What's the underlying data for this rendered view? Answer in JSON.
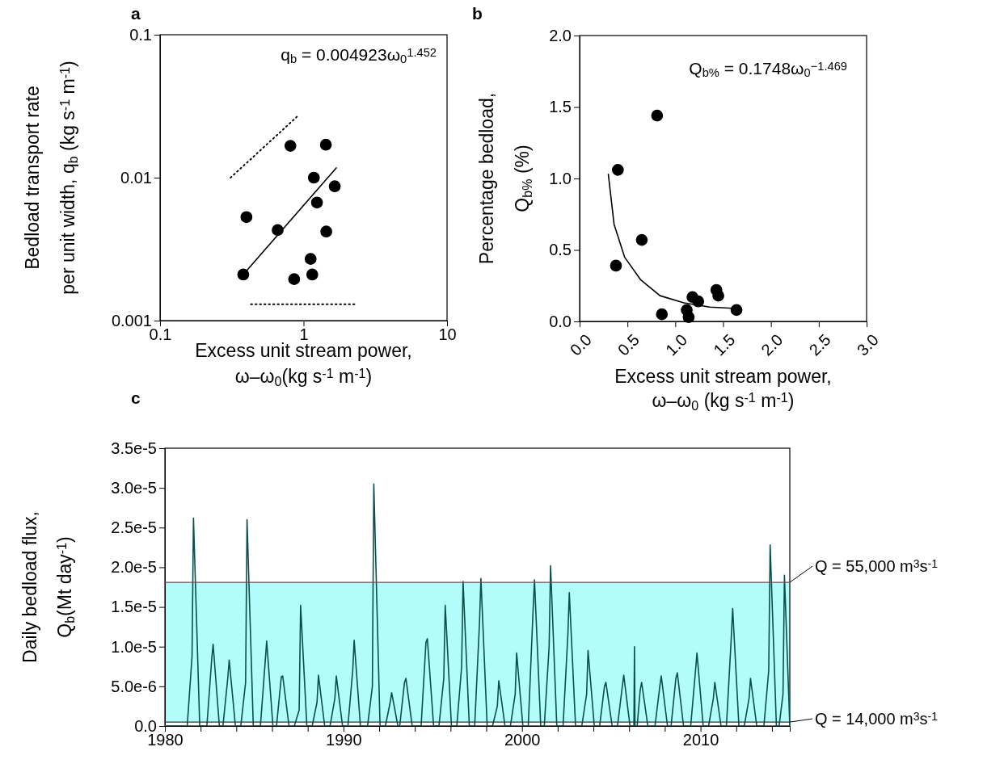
{
  "chart_data": [
    {
      "type": "scatter",
      "title": "a",
      "xlabel": "Excess unit stream power,\nω–ω$_{0}$(kg s$^{-1}$ m$^{-1}$)",
      "ylabel": "Bedload transport rate\nper unit width, q$_{b}$ (kg s$^{-1}$ m$^{-1}$)",
      "annotations": [
        "q$_{b}$ = 0.004923ω$_{0}$$^{1.452}$"
      ],
      "log": "xy",
      "xlim": [
        0.1,
        10
      ],
      "ylim": [
        0.001,
        0.1
      ],
      "xticks": [
        0.1,
        1,
        10
      ],
      "yticks": [
        0.001,
        0.01,
        0.1
      ],
      "series": [
        {
          "marker": "circle",
          "color": "#000000",
          "x": [
            0.38,
            0.4,
            0.66,
            0.81,
            0.86,
            1.12,
            1.15,
            1.18,
            1.24,
            1.43,
            1.44,
            1.65
          ],
          "values": [
            0.0021,
            0.0053,
            0.0043,
            0.0167,
            0.00195,
            0.0027,
            0.0021,
            0.01,
            0.0067,
            0.017,
            0.0042,
            0.0087
          ]
        },
        {
          "type": "line",
          "color": "#000000",
          "x": [
            0.38,
            1.69
          ],
          "values": [
            0.0021,
            0.0117
          ]
        },
        {
          "type": "line",
          "color": "#000000",
          "line_style": "dotted",
          "x": [
            0.31,
            0.93
          ],
          "values": [
            0.01,
            0.0275
          ]
        },
        {
          "type": "line",
          "color": "#000000",
          "line_style": "dotted",
          "x": [
            0.43,
            2.35
          ],
          "values": [
            0.0013,
            0.0013
          ]
        }
      ]
    },
    {
      "type": "scatter",
      "title": "b",
      "xlabel": "Excess unit stream power,\nω–ω$_{0}$ (kg s$^{-1}$ m$^{-1}$)",
      "ylabel": "Percentage bedload,\nQ$_{b%}$ (%)",
      "annotations": [
        "Q$_{b%}$ = 0.1748ω$_{0}$$^{−1.469}$"
      ],
      "xlim": [
        0,
        3
      ],
      "ylim": [
        0,
        2
      ],
      "xticks": [
        {
          "value": 0,
          "label": "0.0"
        },
        {
          "value": 0.5,
          "label": "0.5"
        },
        {
          "value": 1,
          "label": "1.0"
        },
        {
          "value": 1.5,
          "label": "1.5"
        },
        {
          "value": 2,
          "label": "2.0"
        },
        {
          "value": 2.5,
          "label": "2.5"
        },
        {
          "value": 3,
          "label": "3.0"
        }
      ],
      "yticks": [
        {
          "value": 0,
          "label": "0.0"
        },
        {
          "value": 0.5,
          "label": "0.5"
        },
        {
          "value": 1,
          "label": "1.0"
        },
        {
          "value": 1.5,
          "label": "1.5"
        },
        {
          "value": 2,
          "label": "2.0"
        }
      ],
      "series": [
        {
          "marker": "circle",
          "color": "#000000",
          "x": [
            0.38,
            0.4,
            0.65,
            0.81,
            0.86,
            1.12,
            1.14,
            1.18,
            1.24,
            1.43,
            1.45,
            1.64
          ],
          "values": [
            0.39,
            1.06,
            0.57,
            1.44,
            0.05,
            0.08,
            0.03,
            0.17,
            0.14,
            0.22,
            0.18,
            0.08
          ]
        },
        {
          "type": "line",
          "color": "#000000",
          "x": [
            0.3,
            0.36,
            0.47,
            0.64,
            0.84,
            1.09,
            1.36,
            1.64
          ],
          "values": [
            1.03,
            0.68,
            0.45,
            0.29,
            0.18,
            0.13,
            0.1,
            0.09
          ]
        }
      ]
    },
    {
      "type": "line",
      "title": "c",
      "ylabel": "Daily bedload flux,\nQ$_{b}$(Mt day$^{-1}$)",
      "xlim": [
        1980,
        2015
      ],
      "ylim": [
        0,
        3.5e-05
      ],
      "xticks": [
        1980,
        {
          "value": 1982,
          "label": null
        },
        {
          "value": 1984,
          "label": null
        },
        {
          "value": 1986,
          "label": null
        },
        {
          "value": 1988,
          "label": null
        },
        1990,
        {
          "value": 1992,
          "label": null
        },
        {
          "value": 1994,
          "label": null
        },
        {
          "value": 1996,
          "label": null
        },
        {
          "value": 1998,
          "label": null
        },
        2000,
        {
          "value": 2002,
          "label": null
        },
        {
          "value": 2004,
          "label": null
        },
        {
          "value": 2006,
          "label": null
        },
        {
          "value": 2008,
          "label": null
        },
        2010,
        {
          "value": 2012,
          "label": null
        },
        {
          "value": 2014,
          "label": null
        }
      ],
      "yticks": [
        {
          "value": 0,
          "label": "0.0"
        },
        {
          "value": 5e-06,
          "label": "5.0e-6"
        },
        {
          "value": 1e-05,
          "label": "1.0e-5"
        },
        {
          "value": 1.5e-05,
          "label": "1.5e-5"
        },
        {
          "value": 2e-05,
          "label": "2.0e-5"
        },
        {
          "value": 2.5e-05,
          "label": "2.5e-5"
        },
        {
          "value": 3e-05,
          "label": "3.0e-5"
        },
        {
          "value": 3.5e-05,
          "label": "3.5e-5"
        }
      ],
      "bands": [
        {
          "axis": "y",
          "from": 5e-07,
          "to": 1.81e-05,
          "color": "#b3fcfc"
        }
      ],
      "ref_lines": [
        {
          "axis": "y",
          "value": 1.81e-05,
          "color": "#6e4f5a"
        },
        {
          "axis": "y",
          "value": 5e-07,
          "color": "#333333"
        }
      ],
      "annotations": [
        {
          "text": "Q = 55,000 m$^{3}$s$^{-1}$",
          "x": 2015,
          "y": 1.81e-05
        },
        {
          "text": "Q = 14,000 m$^{3}$s$^{-1}$",
          "x": 2015,
          "y": 5e-07
        }
      ],
      "series": [
        {
          "color": "#0b4f4a",
          "x": [
            1980,
            1981.25,
            1981.52,
            1981.6,
            1981.95,
            1982.35,
            1982.62,
            1982.7,
            1983.05,
            1983.25,
            1983.52,
            1983.6,
            1983.95,
            1984.25,
            1984.52,
            1984.6,
            1984.95,
            1985.35,
            1985.62,
            1985.7,
            1986.05,
            1986.25,
            1986.52,
            1986.6,
            1986.95,
            1987.25,
            1987.52,
            1987.6,
            1987.95,
            1988.25,
            1988.52,
            1988.6,
            1988.95,
            1989.25,
            1989.52,
            1989.6,
            1989.95,
            1990.25,
            1990.52,
            1990.6,
            1990.95,
            1991.35,
            1991.62,
            1991.7,
            1992.05,
            1992.35,
            1992.62,
            1992.7,
            1993.05,
            1993.15,
            1993.42,
            1993.5,
            1993.85,
            1994.35,
            1994.62,
            1994.7,
            1995.05,
            1995.35,
            1995.62,
            1995.7,
            1996.05,
            1996.35,
            1996.62,
            1996.7,
            1997.05,
            1997.35,
            1997.62,
            1997.7,
            1998.05,
            1998.35,
            1998.62,
            1998.7,
            1999.05,
            1999.35,
            1999.62,
            1999.7,
            2000.05,
            2000.35,
            2000.62,
            2000.7,
            2001.05,
            2001.25,
            2001.52,
            2001.6,
            2001.95,
            2002.3,
            2002.57,
            2002.65,
            2003.0,
            2003.35,
            2003.62,
            2003.7,
            2004.05,
            2004.35,
            2004.62,
            2004.7,
            2005.05,
            2005.35,
            2005.62,
            2005.7,
            2006.05,
            2006.27,
            2006.3,
            2006.33,
            2006.45,
            2006.62,
            2006.7,
            2007.05,
            2007.45,
            2007.72,
            2007.8,
            2008.15,
            2008.35,
            2008.62,
            2008.7,
            2009.05,
            2009.45,
            2009.72,
            2009.8,
            2010.15,
            2010.45,
            2010.72,
            2010.8,
            2011.15,
            2011.45,
            2011.72,
            2011.8,
            2012.15,
            2012.45,
            2012.72,
            2012.8,
            2013.15,
            2013.55,
            2013.82,
            2013.9,
            2014.25,
            2014.4,
            2014.62,
            2014.7,
            2015.0
          ],
          "values": [
            0,
            0,
            8.8e-06,
            2.62e-05,
            0,
            0,
            8.4e-06,
            1.03e-05,
            0,
            0,
            6e-06,
            8.3e-06,
            0,
            0,
            5.5e-06,
            2.6e-05,
            0,
            0,
            8.2e-06,
            1.07e-05,
            0,
            0,
            6.2e-06,
            6.3e-06,
            0,
            0,
            2e-06,
            1.52e-05,
            0,
            0,
            3e-06,
            6.4e-06,
            0,
            0,
            3.5e-06,
            6.3e-06,
            0,
            0,
            7e-06,
            1.08e-05,
            0,
            0,
            5e-06,
            3.05e-05,
            0,
            0,
            3e-06,
            4.2e-06,
            0,
            0,
            5.5e-06,
            6e-06,
            0,
            0,
            1.05e-05,
            1.1e-05,
            0,
            0,
            6e-06,
            1.52e-05,
            0,
            0,
            7.5e-06,
            1.82e-05,
            0,
            0,
            1.3e-05,
            1.86e-05,
            0,
            0,
            2.5e-06,
            5.7e-06,
            0,
            0,
            4e-06,
            9.2e-06,
            0,
            0,
            1.45e-05,
            1.84e-05,
            0,
            0,
            1e-05,
            2.02e-05,
            0,
            0,
            1.15e-05,
            1.68e-05,
            0,
            0,
            4e-06,
            9.5e-06,
            0,
            0,
            5e-06,
            5.5e-06,
            0,
            0,
            5e-06,
            6.4e-06,
            0,
            0,
            1e-05,
            0,
            0,
            4.5e-06,
            5.5e-06,
            0,
            0,
            5e-06,
            6.3e-06,
            0,
            0,
            6e-06,
            6.7e-06,
            0,
            0,
            7e-06,
            9.2e-06,
            0,
            0,
            3.5e-06,
            5.5e-06,
            0,
            0,
            1.1e-05,
            1.48e-05,
            0,
            0,
            3.5e-06,
            6e-06,
            0,
            0,
            7e-06,
            2.28e-05,
            0,
            0,
            4e-06,
            1.9e-05,
            0
          ]
        }
      ]
    }
  ]
}
